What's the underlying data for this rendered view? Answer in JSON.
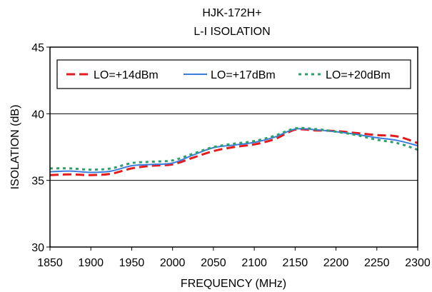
{
  "chart_data": {
    "type": "line",
    "title": "HJK-172H+",
    "subtitle": "L-I ISOLATION",
    "xlabel": "FREQUENCY (MHz)",
    "ylabel": "ISOLATION (dB)",
    "xlim": [
      1850,
      2300
    ],
    "ylim": [
      30,
      45
    ],
    "x_ticks": [
      1850,
      1900,
      1950,
      2000,
      2050,
      2100,
      2150,
      2200,
      2250,
      2300
    ],
    "y_ticks": [
      30,
      35,
      40,
      45
    ],
    "grid": "horizontal",
    "legend_position": "top",
    "series": [
      {
        "name": "LO=+14dBm",
        "color": "#e41a1c",
        "style": "dashed",
        "x": [
          1850,
          1875,
          1900,
          1925,
          1950,
          1975,
          2000,
          2025,
          2050,
          2075,
          2100,
          2125,
          2150,
          2175,
          2200,
          2225,
          2250,
          2275,
          2300
        ],
        "y": [
          35.4,
          35.45,
          35.4,
          35.5,
          35.9,
          36.1,
          36.2,
          36.7,
          37.2,
          37.5,
          37.7,
          38.1,
          38.8,
          38.75,
          38.7,
          38.55,
          38.4,
          38.3,
          37.8
        ]
      },
      {
        "name": "LO=+17dBm",
        "color": "#3b7ddd",
        "style": "solid",
        "x": [
          1850,
          1875,
          1900,
          1925,
          1950,
          1975,
          2000,
          2025,
          2050,
          2075,
          2100,
          2125,
          2150,
          2175,
          2200,
          2225,
          2250,
          2275,
          2300
        ],
        "y": [
          35.65,
          35.7,
          35.6,
          35.7,
          36.1,
          36.2,
          36.3,
          36.9,
          37.45,
          37.65,
          37.85,
          38.25,
          38.85,
          38.8,
          38.65,
          38.45,
          38.2,
          38.0,
          37.6
        ]
      },
      {
        "name": "LO=+20dBm",
        "color": "#2e9e6b",
        "style": "dotted",
        "x": [
          1850,
          1875,
          1900,
          1925,
          1950,
          1975,
          2000,
          2025,
          2050,
          2075,
          2100,
          2125,
          2150,
          2175,
          2200,
          2225,
          2250,
          2275,
          2300
        ],
        "y": [
          35.9,
          35.9,
          35.8,
          35.9,
          36.3,
          36.4,
          36.5,
          37.0,
          37.5,
          37.75,
          37.95,
          38.35,
          38.9,
          38.85,
          38.65,
          38.4,
          38.05,
          37.8,
          37.3
        ]
      }
    ]
  }
}
